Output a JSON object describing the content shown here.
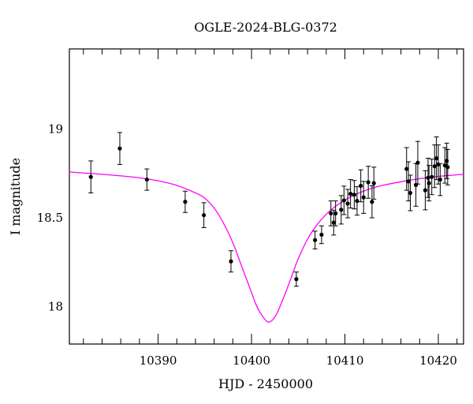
{
  "chart_data": {
    "type": "scatter",
    "title": "OGLE-2024-BLG-0372",
    "xlabel": "HJD - 2450000",
    "ylabel": "I magnitude",
    "xlim": [
      10380.5,
      10422.7
    ],
    "ylim": [
      19.45,
      17.79
    ],
    "y_inverted": true,
    "xticks": [
      10390,
      10400,
      10410,
      10420
    ],
    "yticks": [
      18,
      18.5,
      19
    ],
    "xtick_labels": [
      "10390",
      "10400",
      "10410",
      "10420"
    ],
    "ytick_labels": [
      "18",
      "18.5",
      "19"
    ],
    "grid": false,
    "colors": {
      "points": "#000000",
      "errorbars": "#000000",
      "model": "#ff00ff",
      "axes": "#000000"
    },
    "model": {
      "name": "",
      "x": [
        10380.5,
        10382,
        10384,
        10386,
        10388,
        10390,
        10392,
        10394,
        10395,
        10396,
        10397,
        10398,
        10399,
        10400,
        10400.5,
        10401,
        10401.5,
        10401.8,
        10402.2,
        10402.7,
        10403.2,
        10403.8,
        10404.5,
        10405,
        10406,
        10407,
        10408,
        10409,
        10410,
        10411,
        10412,
        10413,
        10414,
        10416,
        10418,
        10420,
        10422.7
      ],
      "y": [
        18.758,
        18.752,
        18.745,
        18.736,
        18.725,
        18.708,
        18.682,
        18.64,
        18.61,
        18.555,
        18.47,
        18.36,
        18.22,
        18.08,
        18.01,
        17.96,
        17.925,
        17.913,
        17.923,
        17.96,
        18.02,
        18.1,
        18.2,
        18.27,
        18.38,
        18.46,
        18.52,
        18.565,
        18.6,
        18.628,
        18.65,
        18.668,
        18.682,
        18.703,
        18.72,
        18.733,
        18.745
      ]
    },
    "series": [
      {
        "x": [
          10382.8,
          10385.9,
          10388.8,
          10392.9,
          10394.9,
          10397.8,
          10404.8,
          10406.8,
          10407.5,
          10408.5,
          10408.8,
          10409.0,
          10409.6,
          10409.9,
          10410.3,
          10410.6,
          10411.0,
          10411.3,
          10411.7,
          10412.0,
          10412.5,
          10412.9,
          10413.1,
          10416.6,
          10416.8,
          10417.0,
          10417.6,
          10417.8,
          10418.6,
          10418.9,
          10419.0,
          10419.3,
          10419.6,
          10419.8,
          10420.0,
          10420.2,
          10420.7,
          10420.9,
          10421.0
        ],
        "y": [
          18.73,
          18.89,
          18.715,
          18.59,
          18.515,
          18.255,
          18.155,
          18.375,
          18.405,
          18.525,
          18.473,
          18.525,
          18.545,
          18.598,
          18.58,
          18.635,
          18.63,
          18.595,
          18.68,
          18.615,
          18.7,
          18.59,
          18.695,
          18.775,
          18.705,
          18.64,
          18.685,
          18.81,
          18.655,
          18.725,
          18.695,
          18.73,
          18.79,
          18.835,
          18.8,
          18.715,
          18.795,
          18.82,
          18.785
        ],
        "err": [
          0.09,
          0.09,
          0.06,
          0.06,
          0.07,
          0.06,
          0.04,
          0.05,
          0.05,
          0.07,
          0.07,
          0.07,
          0.08,
          0.08,
          0.08,
          0.08,
          0.08,
          0.08,
          0.09,
          0.09,
          0.09,
          0.09,
          0.09,
          0.12,
          0.11,
          0.1,
          0.12,
          0.12,
          0.11,
          0.11,
          0.1,
          0.1,
          0.12,
          0.12,
          0.11,
          0.09,
          0.1,
          0.1,
          0.1
        ]
      }
    ]
  }
}
